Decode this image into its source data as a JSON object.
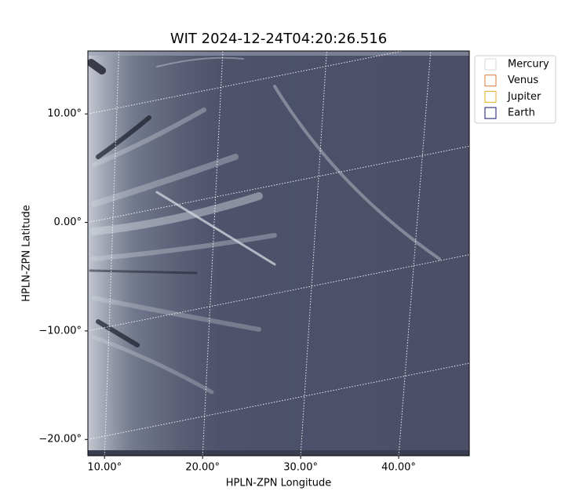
{
  "chart_data": {
    "type": "image",
    "title": "WIT 2024-12-24T04:20:26.516",
    "x_label": "HPLN-ZPN Longitude",
    "y_label": "HPLN-ZPN Latitude",
    "xlim": [
      8.3,
      47.2
    ],
    "ylim": [
      -21.5,
      15.8
    ],
    "xticks": [
      {
        "value": 10,
        "label": "10.00°"
      },
      {
        "value": 20,
        "label": "20.00°"
      },
      {
        "value": 30,
        "label": "30.00°"
      },
      {
        "value": 40,
        "label": "40.00°"
      }
    ],
    "yticks": [
      {
        "value": 10,
        "label": "10.00°"
      },
      {
        "value": 0,
        "label": "0.00°"
      },
      {
        "value": -10,
        "label": "−10.00°"
      },
      {
        "value": -20,
        "label": "−20.00°"
      }
    ],
    "grid": true,
    "legend": "upper right outside",
    "series": [
      {
        "name": "Mercury",
        "color": "#d9d9d9"
      },
      {
        "name": "Venus",
        "color": "#e07b39"
      },
      {
        "name": "Jupiter",
        "color": "#e3ac1f"
      },
      {
        "name": "Earth",
        "color": "#14146e"
      }
    ]
  }
}
